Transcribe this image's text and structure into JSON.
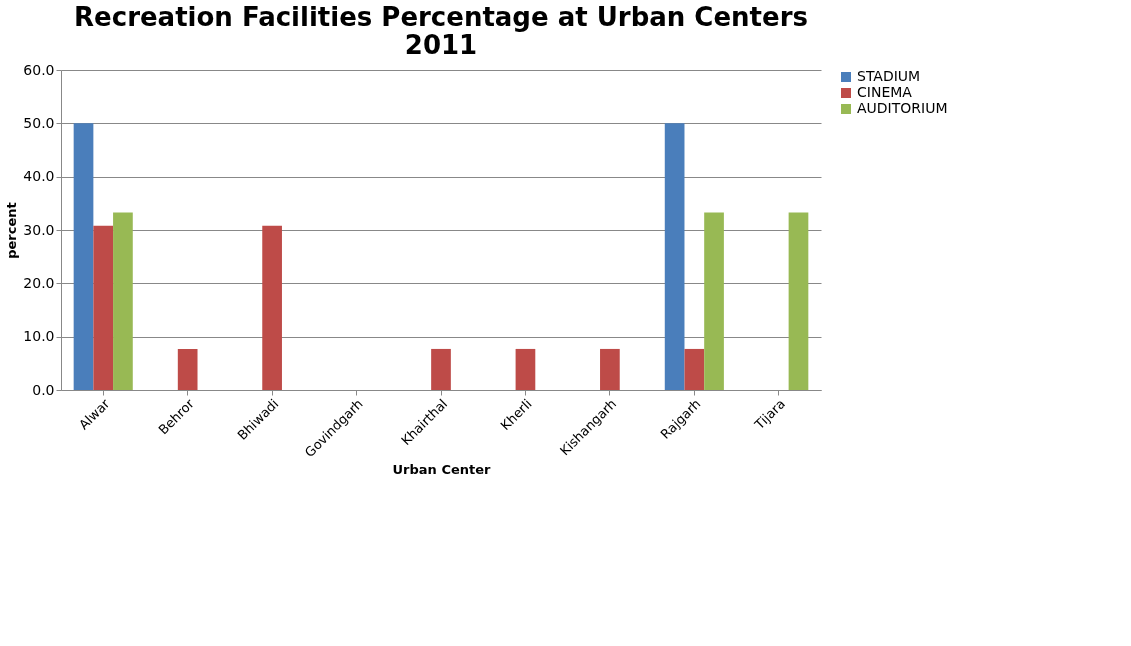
{
  "chart_data": {
    "type": "bar",
    "title": "Recreation Facilities Percentage at Urban Centers\n2011",
    "xlabel": "Urban Center",
    "ylabel": "percent",
    "categories": [
      "Alwar",
      "Behror",
      "Bhiwadi",
      "Govindgarh",
      "Khairthal",
      "Kherli",
      "Kishangarh",
      "Rajgarh",
      "Tijara"
    ],
    "series": [
      {
        "name": "STADIUM",
        "color": "#4a7ebb",
        "values": [
          50.0,
          0,
          0,
          0,
          0,
          0,
          0,
          50.0,
          0
        ]
      },
      {
        "name": "CINEMA",
        "color": "#be4b48",
        "values": [
          30.8,
          7.7,
          30.8,
          0,
          7.7,
          7.7,
          7.7,
          7.7,
          0
        ]
      },
      {
        "name": "AUDITORIUM",
        "color": "#98b954",
        "values": [
          33.3,
          0,
          0,
          0,
          0,
          0,
          0,
          33.3,
          33.3
        ]
      }
    ],
    "ylim": [
      0,
      60
    ],
    "yticks": [
      {
        "value": 0,
        "label": "0.0"
      },
      {
        "value": 10,
        "label": "10.0"
      },
      {
        "value": 20,
        "label": "20.0"
      },
      {
        "value": 30,
        "label": "30.0"
      },
      {
        "value": 40,
        "label": "40.0"
      },
      {
        "value": 50,
        "label": "50.0"
      },
      {
        "value": 60,
        "label": "60.0"
      }
    ],
    "grid": "y",
    "legend": "right"
  }
}
